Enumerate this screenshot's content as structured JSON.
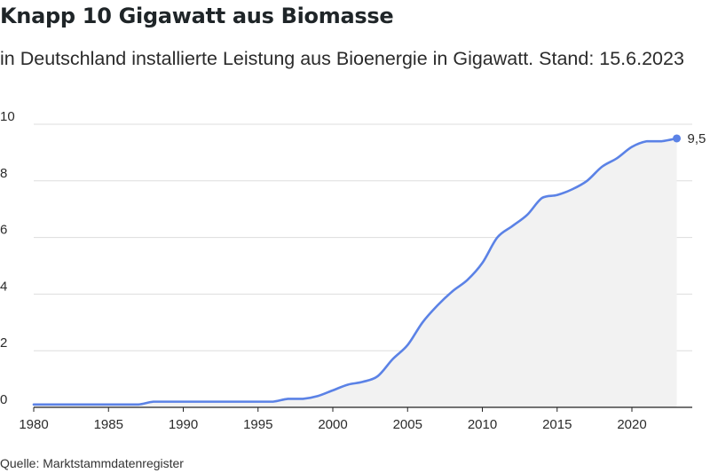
{
  "chart_data": {
    "type": "area",
    "title": "Knapp 10 Gigawatt aus Biomasse",
    "subtitle": "in Deutschland installierte Leistung aus Bioenergie in Gigawatt. Stand: 15.6.2023",
    "source": "Quelle: Marktstammdatenregister",
    "xlabel": "",
    "ylabel": "",
    "xlim": [
      1980,
      2024
    ],
    "ylim": [
      0,
      10
    ],
    "x_ticks": [
      "1980",
      "1985",
      "1990",
      "1995",
      "2000",
      "2005",
      "2010",
      "2015",
      "2020"
    ],
    "y_ticks": [
      "0",
      "2",
      "4",
      "6",
      "8",
      "10"
    ],
    "grid": "horizontal",
    "line_color": "#5b82e6",
    "fill_color": "#f2f2f2",
    "end_label": "9,5",
    "series": [
      {
        "x": [
          1980,
          1981,
          1982,
          1983,
          1984,
          1985,
          1986,
          1987,
          1988,
          1989,
          1990,
          1991,
          1992,
          1993,
          1994,
          1995,
          1996,
          1997,
          1998,
          1999,
          2000,
          2001,
          2002,
          2003,
          2004,
          2005,
          2006,
          2007,
          2008,
          2009,
          2010,
          2011,
          2012,
          2013,
          2014,
          2015,
          2016,
          2017,
          2018,
          2019,
          2020,
          2021,
          2022,
          2023
        ],
        "y": [
          0.1,
          0.1,
          0.1,
          0.1,
          0.1,
          0.1,
          0.1,
          0.1,
          0.2,
          0.2,
          0.2,
          0.2,
          0.2,
          0.2,
          0.2,
          0.2,
          0.2,
          0.3,
          0.3,
          0.4,
          0.6,
          0.8,
          0.9,
          1.1,
          1.7,
          2.2,
          3.0,
          3.6,
          4.1,
          4.5,
          5.1,
          6.0,
          6.4,
          6.8,
          7.4,
          7.5,
          7.7,
          8.0,
          8.5,
          8.8,
          9.2,
          9.4,
          9.4,
          9.5
        ]
      }
    ]
  }
}
